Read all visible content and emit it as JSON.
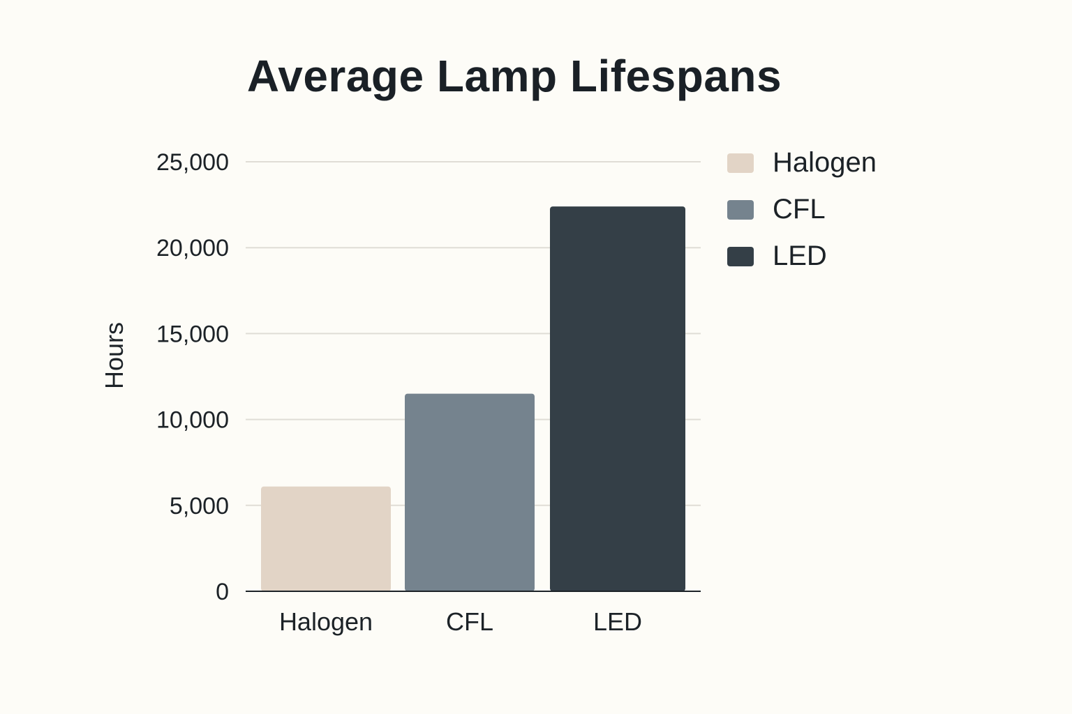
{
  "chart_data": {
    "type": "bar",
    "title": "Average Lamp Lifespans",
    "xlabel": "",
    "ylabel": "Hours",
    "categories": [
      "Halogen",
      "CFL",
      "LED"
    ],
    "values": [
      6100,
      11500,
      22400
    ],
    "colors": [
      "#e2d4c6",
      "#75838e",
      "#343f47"
    ],
    "ylim": [
      0,
      25000
    ],
    "yticks": [
      0,
      5000,
      10000,
      15000,
      20000,
      25000
    ],
    "ytick_labels": [
      "0",
      "5,000",
      "10,000",
      "15,000",
      "20,000",
      "25,000"
    ],
    "grid": true,
    "legend": {
      "position": "top-right",
      "entries": [
        "Halogen",
        "CFL",
        "LED"
      ]
    }
  }
}
